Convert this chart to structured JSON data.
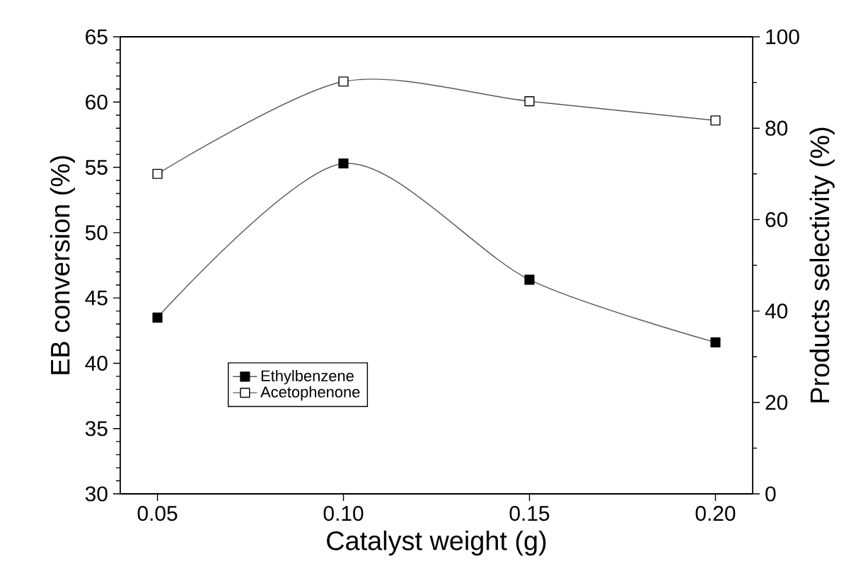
{
  "chart_data": {
    "type": "line",
    "xlabel": "Catalyst weight (g)",
    "ylabel": "EB conversion (%)",
    "y2label": "Products selectivity (%)",
    "x": [
      0.05,
      0.1,
      0.15,
      0.2
    ],
    "series": [
      {
        "name": "Ethylbenzene",
        "color": "#000000",
        "values": [
          43.5,
          55.3,
          46.4,
          41.6
        ]
      },
      {
        "name": "Acetophenone",
        "color": "#ffffff",
        "values": [
          70,
          90.2,
          85.9,
          81.7
        ],
        "axis": "y2"
      }
    ],
    "xlim": [
      0.04,
      0.21
    ],
    "xticks": [
      {
        "value": 0.05,
        "label": "0.05"
      },
      {
        "value": 0.1,
        "label": "0.10"
      },
      {
        "value": 0.15,
        "label": "0.15"
      },
      {
        "value": 0.2,
        "label": "0.20"
      }
    ],
    "ylim": [
      30,
      65
    ],
    "yticks": [
      30,
      35,
      40,
      45,
      50,
      55,
      60,
      65
    ],
    "y2lim": [
      0,
      100
    ],
    "y2ticks": [
      0,
      20,
      40,
      60,
      80,
      100
    ],
    "marker": "square",
    "line_style": "solid",
    "grid": false,
    "legend": "bottom left"
  }
}
